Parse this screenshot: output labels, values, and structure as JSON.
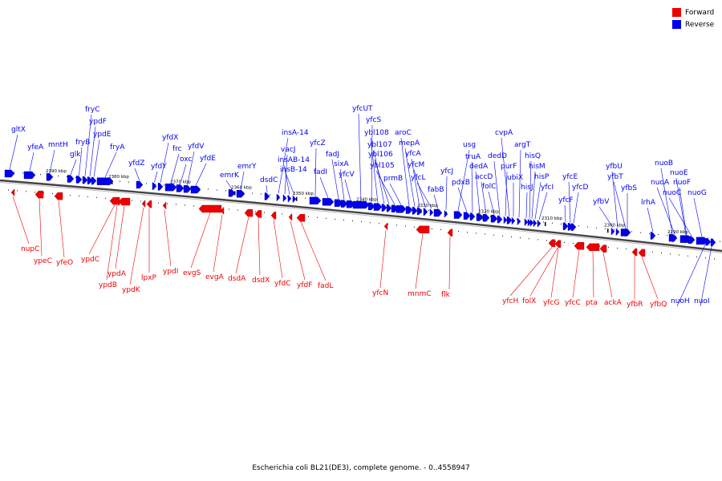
{
  "caption": "Escherichia coli BL21(DE3), complete genome. - 0..4558947",
  "legend": [
    {
      "label": "Forward",
      "color": "#ee0000"
    },
    {
      "label": "Reverse",
      "color": "#0000ee"
    }
  ],
  "colors": {
    "forward": "#ee0000",
    "reverse": "#0000ee",
    "axis": "#555555"
  },
  "scale_labels": [
    "2390 kbp",
    "2380 kbp",
    "2370 kbp",
    "2360 kbp",
    "2350 kbp",
    "2340 kbp",
    "2330 kbp",
    "2320 kbp",
    "2310 kbp",
    "2300 kbp",
    "2290 kbp"
  ],
  "genes": {
    "reverse": [
      "gltX",
      "yfeA",
      "mntH",
      "glk",
      "fryB",
      "fryC",
      "ypdF",
      "ypdE",
      "fryA",
      "yfdZ",
      "yfdY",
      "yfdX",
      "frc",
      "oxc",
      "yfdV",
      "yfdE",
      "emrK",
      "emrY",
      "dsdC",
      "insA-14",
      "vacJ",
      "insAB-14",
      "insB-14",
      "yfcZ",
      "fadI",
      "fadJ",
      "sixA",
      "yfcV",
      "yfcUT",
      "yfcS",
      "ybl108",
      "ybl107",
      "ybl106",
      "ybl105",
      "prmB",
      "aroC",
      "mepA",
      "yfcA",
      "yfcM",
      "yfcL",
      "fabB",
      "yfcJ",
      "usg",
      "pdxB",
      "truA",
      "dedA",
      "accD",
      "folC",
      "dedD",
      "purF",
      "cvpA",
      "ubiX",
      "argT",
      "hisJ",
      "hisQ",
      "hisM",
      "hisP",
      "yfcI",
      "yfcF",
      "yfcE",
      "yfcD",
      "yfbV",
      "yfbU",
      "yfbT",
      "yfbS",
      "lrhA",
      "nuoB",
      "nuoA",
      "nuoE",
      "nuoF",
      "nuoC",
      "nuoG",
      "nuoH",
      "nuoI"
    ],
    "forward": [
      "nupC",
      "ypeC",
      "yfeO",
      "ypdC",
      "ypdA",
      "ypdB",
      "ypdK",
      "lpxP",
      "ypdI",
      "evgS",
      "evgA",
      "dsdA",
      "dsdX",
      "yfdC",
      "yfdF",
      "fadL",
      "yfcN",
      "mnmC",
      "flk",
      "yfcH",
      "folX",
      "yfcG",
      "yfcC",
      "pta",
      "ackA",
      "yfbR",
      "yfbQ"
    ]
  }
}
